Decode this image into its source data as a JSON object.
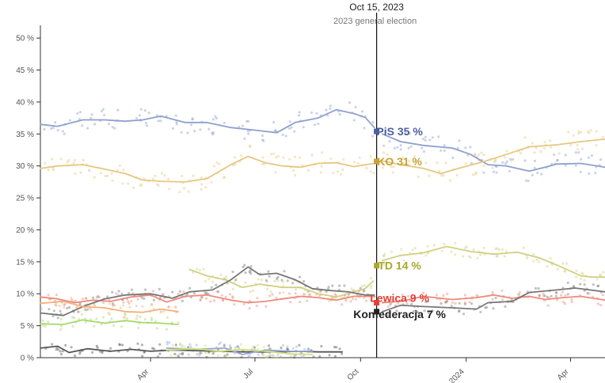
{
  "chart_data": {
    "type": "line",
    "title": "",
    "xlabel": "",
    "ylabel": "",
    "ylim": [
      0,
      52
    ],
    "y_ticks": [
      0,
      5,
      10,
      15,
      20,
      25,
      30,
      35,
      40,
      45,
      50
    ],
    "y_tick_labels": [
      "0 %",
      "5 %",
      "10 %",
      "15 %",
      "20 %",
      "25 %",
      "30 %",
      "35 %",
      "40 %",
      "45 %",
      "50 %"
    ],
    "x_range": [
      "2022-12-26",
      "2024-05-01"
    ],
    "x_ticks": [
      {
        "date": "2023-04-01",
        "label": "Apr"
      },
      {
        "date": "2023-07-01",
        "label": "Jul"
      },
      {
        "date": "2023-10-01",
        "label": "Oct"
      },
      {
        "date": "2024-01-01",
        "label": "2024"
      },
      {
        "date": "2024-04-01",
        "label": "Apr"
      }
    ],
    "grid": false,
    "event": {
      "date": "2023-10-15",
      "date_label": "Oct 15, 2023",
      "label": "2023 general election"
    },
    "series": [
      {
        "name": "PiS",
        "result_label": "PiS 35 %",
        "color": "#8fa0cf",
        "label_color": "#4a5f9e",
        "result": 35.4,
        "points": [
          [
            "2022-12-26",
            36.5
          ],
          [
            "2023-01-10",
            36.2
          ],
          [
            "2023-02-01",
            37.2
          ],
          [
            "2023-02-20",
            37.2
          ],
          [
            "2023-03-10",
            37.0
          ],
          [
            "2023-03-25",
            37.2
          ],
          [
            "2023-04-10",
            37.8
          ],
          [
            "2023-05-01",
            36.8
          ],
          [
            "2023-05-20",
            36.8
          ],
          [
            "2023-06-10",
            36.0
          ],
          [
            "2023-07-01",
            35.6
          ],
          [
            "2023-07-20",
            35.2
          ],
          [
            "2023-08-05",
            36.8
          ],
          [
            "2023-08-25",
            37.5
          ],
          [
            "2023-09-10",
            38.8
          ],
          [
            "2023-09-25",
            38.2
          ],
          [
            "2023-10-05",
            37.6
          ],
          [
            "2023-10-13",
            36.0
          ]
        ]
      },
      {
        "name": "",
        "color": "#8fa0cf",
        "points": [
          [
            "2023-10-20",
            35.0
          ],
          [
            "2023-11-05",
            33.8
          ],
          [
            "2023-11-25",
            33.2
          ],
          [
            "2023-12-20",
            32.8
          ],
          [
            "2024-01-05",
            31.8
          ],
          [
            "2024-01-20",
            30.2
          ],
          [
            "2024-02-05",
            30.0
          ],
          [
            "2024-02-25",
            29.2
          ],
          [
            "2024-03-10",
            29.8
          ],
          [
            "2024-03-20",
            30.3
          ],
          [
            "2024-04-10",
            30.4
          ],
          [
            "2024-05-01",
            29.8
          ]
        ]
      },
      {
        "name": "KO",
        "result_label": "KO 31 %",
        "color": "#e6c77e",
        "label_color": "#c9a233",
        "result": 30.7,
        "points": [
          [
            "2022-12-26",
            29.6
          ],
          [
            "2023-01-10",
            30.0
          ],
          [
            "2023-02-01",
            30.2
          ],
          [
            "2023-02-20",
            29.5
          ],
          [
            "2023-03-10",
            28.8
          ],
          [
            "2023-03-25",
            27.8
          ],
          [
            "2023-04-10",
            27.6
          ],
          [
            "2023-05-01",
            27.5
          ],
          [
            "2023-05-20",
            28.0
          ],
          [
            "2023-06-10",
            30.2
          ],
          [
            "2023-06-25",
            31.5
          ],
          [
            "2023-07-10",
            30.5
          ],
          [
            "2023-07-25",
            30.0
          ],
          [
            "2023-08-10",
            29.8
          ],
          [
            "2023-08-25",
            30.4
          ],
          [
            "2023-09-10",
            30.5
          ],
          [
            "2023-09-25",
            29.9
          ],
          [
            "2023-10-13",
            30.4
          ]
        ]
      },
      {
        "name": "",
        "color": "#e6c77e",
        "points": [
          [
            "2023-10-20",
            30.8
          ],
          [
            "2023-11-05",
            30.2
          ],
          [
            "2023-11-25",
            29.6
          ],
          [
            "2023-12-10",
            28.8
          ],
          [
            "2023-12-25",
            29.6
          ],
          [
            "2024-01-15",
            30.6
          ],
          [
            "2024-02-05",
            31.8
          ],
          [
            "2024-02-25",
            33.0
          ],
          [
            "2024-03-20",
            33.3
          ],
          [
            "2024-04-10",
            33.8
          ],
          [
            "2024-05-01",
            34.2
          ]
        ]
      },
      {
        "name": "TD",
        "result_label": "TD 14 %",
        "color": "#d2d080",
        "label_color": "#a9a82b",
        "result": 14.4,
        "points": [
          [
            "2023-05-05",
            13.8
          ],
          [
            "2023-05-20",
            12.8
          ],
          [
            "2023-06-05",
            12.2
          ],
          [
            "2023-06-20",
            11.0
          ],
          [
            "2023-07-05",
            11.5
          ],
          [
            "2023-07-25",
            11.0
          ],
          [
            "2023-08-10",
            11.0
          ],
          [
            "2023-08-25",
            10.0
          ],
          [
            "2023-09-10",
            9.5
          ],
          [
            "2023-09-25",
            10.3
          ],
          [
            "2023-10-05",
            10.8
          ],
          [
            "2023-10-12",
            12.0
          ]
        ]
      },
      {
        "name": "",
        "color": "#d2d080",
        "points": [
          [
            "2023-10-20",
            15.2
          ],
          [
            "2023-11-05",
            16.0
          ],
          [
            "2023-11-25",
            16.4
          ],
          [
            "2023-12-15",
            17.4
          ],
          [
            "2024-01-05",
            16.6
          ],
          [
            "2024-01-25",
            16.2
          ],
          [
            "2024-02-15",
            16.5
          ],
          [
            "2024-03-05",
            15.6
          ],
          [
            "2024-03-20",
            14.5
          ],
          [
            "2024-04-10",
            12.8
          ],
          [
            "2024-04-20",
            12.6
          ],
          [
            "2024-05-01",
            12.6
          ]
        ]
      },
      {
        "name": "Lewica",
        "result_label": "Lewica 9 %",
        "color": "#ee8a7a",
        "label_color": "#e34137",
        "result": 8.6,
        "points": [
          [
            "2022-12-26",
            9.5
          ],
          [
            "2023-01-10",
            9.2
          ],
          [
            "2023-01-25",
            8.6
          ],
          [
            "2023-02-10",
            9.0
          ],
          [
            "2023-02-25",
            8.8
          ],
          [
            "2023-03-15",
            9.5
          ],
          [
            "2023-04-01",
            9.8
          ],
          [
            "2023-04-15",
            8.7
          ],
          [
            "2023-05-01",
            9.6
          ],
          [
            "2023-05-20",
            9.8
          ],
          [
            "2023-06-10",
            9.0
          ],
          [
            "2023-06-25",
            8.6
          ],
          [
            "2023-07-10",
            8.8
          ],
          [
            "2023-07-25",
            9.2
          ],
          [
            "2023-08-10",
            9.6
          ],
          [
            "2023-08-25",
            9.4
          ],
          [
            "2023-09-10",
            9.0
          ],
          [
            "2023-09-25",
            9.6
          ],
          [
            "2023-10-13",
            9.6
          ]
        ]
      },
      {
        "name": "",
        "color": "#ee8a7a",
        "points": [
          [
            "2023-10-20",
            8.6
          ],
          [
            "2023-11-05",
            8.8
          ],
          [
            "2023-11-25",
            9.6
          ],
          [
            "2023-12-20",
            9.1
          ],
          [
            "2024-01-10",
            9.4
          ],
          [
            "2024-01-25",
            9.8
          ],
          [
            "2024-02-10",
            9.3
          ],
          [
            "2024-02-25",
            9.6
          ],
          [
            "2024-03-10",
            9.1
          ],
          [
            "2024-03-25",
            9.4
          ],
          [
            "2024-04-10",
            9.6
          ],
          [
            "2024-05-01",
            9.0
          ]
        ]
      },
      {
        "name": "Konfederacja",
        "result_label": "Konfederacja 7 %",
        "color": "#777777",
        "label_color": "#222222",
        "result": 7.2,
        "points": [
          [
            "2022-12-26",
            7.0
          ],
          [
            "2023-01-15",
            6.6
          ],
          [
            "2023-02-01",
            8.0
          ],
          [
            "2023-02-20",
            9.2
          ],
          [
            "2023-03-10",
            9.8
          ],
          [
            "2023-04-01",
            10.0
          ],
          [
            "2023-04-20",
            9.3
          ],
          [
            "2023-05-05",
            10.3
          ],
          [
            "2023-05-25",
            10.6
          ],
          [
            "2023-06-10",
            12.2
          ],
          [
            "2023-06-25",
            14.2
          ],
          [
            "2023-07-05",
            13.0
          ],
          [
            "2023-07-20",
            13.2
          ],
          [
            "2023-08-05",
            12.2
          ],
          [
            "2023-08-20",
            10.8
          ],
          [
            "2023-09-05",
            10.5
          ],
          [
            "2023-09-20",
            10.3
          ],
          [
            "2023-10-05",
            9.8
          ],
          [
            "2023-10-13",
            9.8
          ]
        ]
      },
      {
        "name": "",
        "color": "#777777",
        "points": [
          [
            "2023-10-20",
            7.2
          ],
          [
            "2023-11-05",
            8.2
          ],
          [
            "2023-11-25",
            8.0
          ],
          [
            "2023-12-20",
            7.8
          ],
          [
            "2024-01-10",
            7.6
          ],
          [
            "2024-01-20",
            8.6
          ],
          [
            "2024-02-10",
            8.8
          ],
          [
            "2024-02-25",
            10.2
          ],
          [
            "2024-03-20",
            10.6
          ],
          [
            "2024-04-05",
            10.9
          ],
          [
            "2024-05-01",
            10.3
          ]
        ]
      },
      {
        "name": "",
        "color": "#a6d96a",
        "points": [
          [
            "2022-12-26",
            5.3
          ],
          [
            "2023-01-15",
            5.2
          ],
          [
            "2023-02-01",
            5.9
          ],
          [
            "2023-02-20",
            5.4
          ],
          [
            "2023-03-10",
            5.8
          ],
          [
            "2023-03-25",
            5.5
          ],
          [
            "2023-04-10",
            5.4
          ],
          [
            "2023-04-25",
            5.2
          ]
        ]
      },
      {
        "name": "",
        "color": "#f2b27a",
        "points": [
          [
            "2022-12-26",
            8.5
          ],
          [
            "2023-01-15",
            8.8
          ],
          [
            "2023-02-01",
            8.0
          ],
          [
            "2023-02-20",
            7.8
          ],
          [
            "2023-03-10",
            7.2
          ],
          [
            "2023-03-25",
            7.1
          ],
          [
            "2023-04-10",
            7.6
          ],
          [
            "2023-04-25",
            7.2
          ]
        ]
      },
      {
        "name": "",
        "color": "#555555",
        "points": [
          [
            "2022-12-26",
            1.5
          ],
          [
            "2023-01-10",
            1.8
          ],
          [
            "2023-01-20",
            0.8
          ],
          [
            "2023-02-05",
            1.4
          ],
          [
            "2023-02-25",
            1.0
          ],
          [
            "2023-03-15",
            1.3
          ],
          [
            "2023-04-01",
            1.0
          ],
          [
            "2023-04-20",
            1.2
          ],
          [
            "2023-05-10",
            1.1
          ],
          [
            "2023-06-01",
            1.0
          ],
          [
            "2023-06-20",
            0.9
          ],
          [
            "2023-07-20",
            0.9
          ],
          [
            "2023-08-10",
            1.0
          ],
          [
            "2023-08-25",
            0.9
          ],
          [
            "2023-09-15",
            0.9
          ]
        ]
      },
      {
        "name": "",
        "color": "#9aa6d8",
        "points": [
          [
            "2023-04-15",
            1.5
          ],
          [
            "2023-05-10",
            1.3
          ],
          [
            "2023-06-05",
            1.5
          ],
          [
            "2023-06-20",
            0.5
          ],
          [
            "2023-07-10",
            1.2
          ],
          [
            "2023-08-01",
            1.0
          ],
          [
            "2023-08-20",
            1.0
          ]
        ]
      },
      {
        "name": "",
        "color": "#cfe37a",
        "points": [
          [
            "2023-04-15",
            1.2
          ],
          [
            "2023-05-10",
            1.4
          ],
          [
            "2023-06-01",
            1.0
          ],
          [
            "2023-06-20",
            1.3
          ],
          [
            "2023-07-10",
            1.0
          ],
          [
            "2023-08-01",
            0.6
          ],
          [
            "2023-08-20",
            0.5
          ]
        ]
      }
    ]
  }
}
